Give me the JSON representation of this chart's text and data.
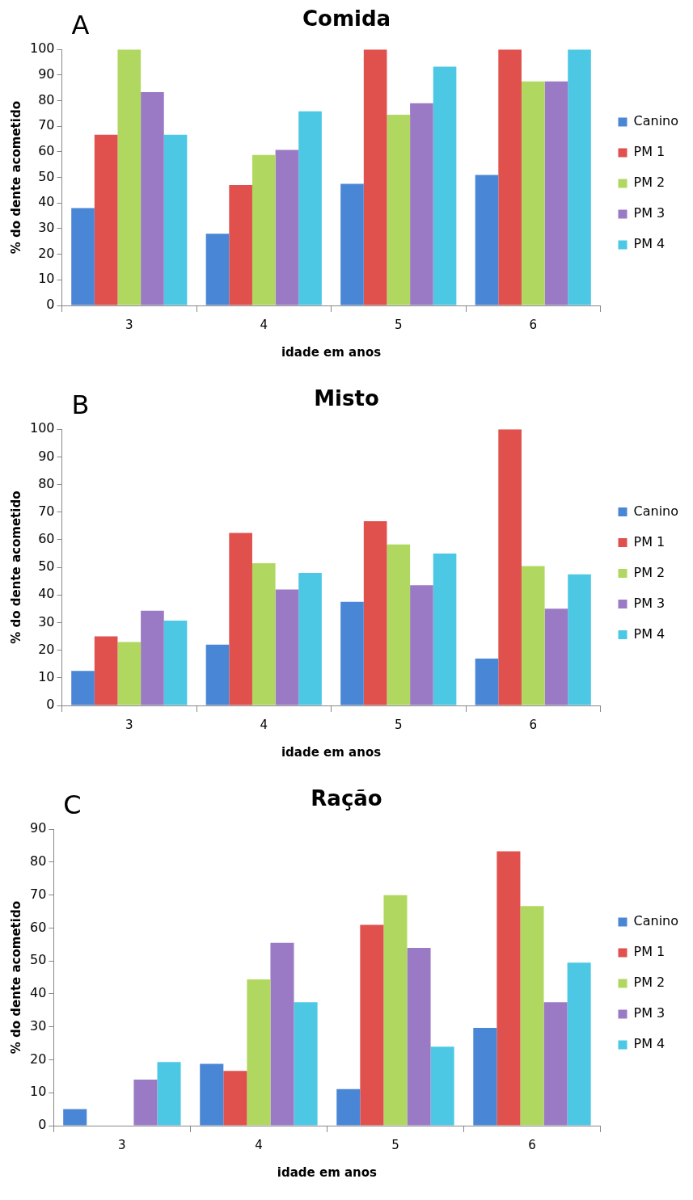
{
  "chart_data": [
    {
      "type": "bar",
      "title": "Comida",
      "xlabel": "idade em anos",
      "ylabel": "% do dente acometido",
      "annotations": [
        "A"
      ],
      "categories": [
        "3",
        "4",
        "5",
        "6"
      ],
      "ylim": [
        0,
        100
      ],
      "yticks": [
        0,
        10,
        20,
        30,
        40,
        50,
        60,
        70,
        80,
        90,
        100
      ],
      "grid": false,
      "legend": "right",
      "series": [
        {
          "name": "Canino",
          "color": "#4a86d6",
          "values": [
            38,
            28,
            47.5,
            51
          ]
        },
        {
          "name": "PM 1",
          "color": "#e0504c",
          "values": [
            66.7,
            47,
            100,
            100
          ]
        },
        {
          "name": "PM 2",
          "color": "#b0d860",
          "values": [
            100,
            58.8,
            74.5,
            87.5
          ]
        },
        {
          "name": "PM 3",
          "color": "#9a7ac4",
          "values": [
            83.3,
            60.8,
            79,
            87.5
          ]
        },
        {
          "name": "PM 4",
          "color": "#4cc8e4",
          "values": [
            66.7,
            75.8,
            93.3,
            100
          ]
        }
      ]
    },
    {
      "type": "bar",
      "title": "Misto",
      "xlabel": "idade em anos",
      "ylabel": "% do dente acometido",
      "annotations": [
        "B"
      ],
      "categories": [
        "3",
        "4",
        "5",
        "6"
      ],
      "ylim": [
        0,
        100
      ],
      "yticks": [
        0,
        10,
        20,
        30,
        40,
        50,
        60,
        70,
        80,
        90,
        100
      ],
      "grid": false,
      "legend": "right",
      "series": [
        {
          "name": "Canino",
          "color": "#4a86d6",
          "values": [
            12.5,
            22,
            37.5,
            17
          ]
        },
        {
          "name": "PM 1",
          "color": "#e0504c",
          "values": [
            25,
            62.5,
            66.7,
            100
          ]
        },
        {
          "name": "PM 2",
          "color": "#b0d860",
          "values": [
            23,
            51.5,
            58.3,
            50.5
          ]
        },
        {
          "name": "PM 3",
          "color": "#9a7ac4",
          "values": [
            34.3,
            42,
            43.5,
            35
          ]
        },
        {
          "name": "PM 4",
          "color": "#4cc8e4",
          "values": [
            30.7,
            48,
            55,
            47.5
          ]
        }
      ]
    },
    {
      "type": "bar",
      "title": "Ração",
      "xlabel": "idade em anos",
      "ylabel": "% do dente acometido",
      "annotations": [
        "C"
      ],
      "categories": [
        "3",
        "4",
        "5",
        "6"
      ],
      "ylim": [
        0,
        90
      ],
      "yticks": [
        0,
        10,
        20,
        30,
        40,
        50,
        60,
        70,
        80,
        90
      ],
      "grid": false,
      "legend": "right",
      "series": [
        {
          "name": "Canino",
          "color": "#4a86d6",
          "values": [
            5,
            18.8,
            11.1,
            29.7
          ]
        },
        {
          "name": "PM 1",
          "color": "#e0504c",
          "values": [
            0,
            16.6,
            61,
            83.3
          ]
        },
        {
          "name": "PM 2",
          "color": "#b0d860",
          "values": [
            0,
            44.4,
            70,
            66.7
          ]
        },
        {
          "name": "PM 3",
          "color": "#9a7ac4",
          "values": [
            14,
            55.5,
            54,
            37.5
          ]
        },
        {
          "name": "PM 4",
          "color": "#4cc8e4",
          "values": [
            19.3,
            37.5,
            24,
            49.5
          ]
        }
      ]
    }
  ]
}
